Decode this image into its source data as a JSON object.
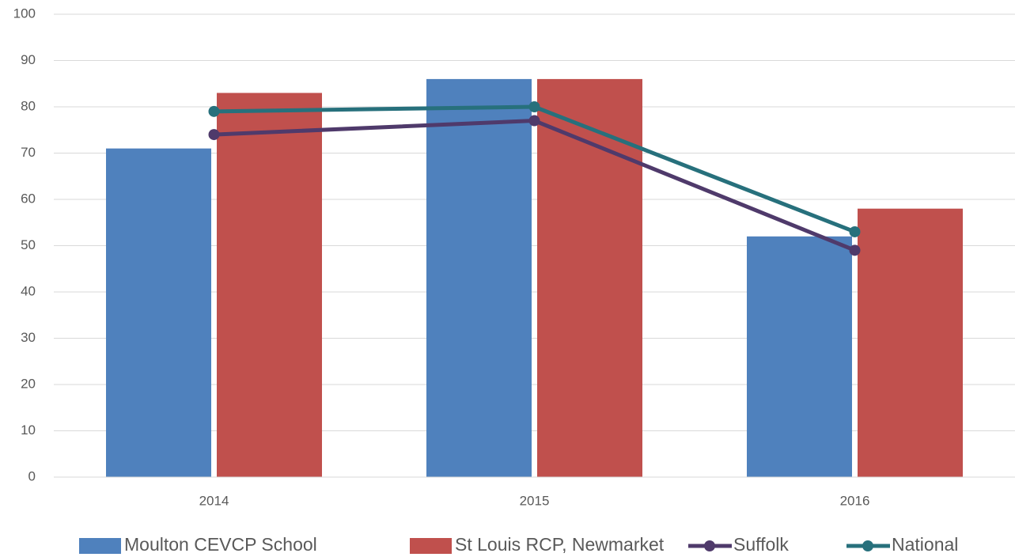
{
  "chart_data": {
    "type": "bar",
    "categories": [
      "2014",
      "2015",
      "2016"
    ],
    "series": [
      {
        "name": "Moulton CEVCP School",
        "type": "bar",
        "color": "#4f81bd",
        "values": [
          71,
          86,
          52
        ]
      },
      {
        "name": "St Louis RCP, Newmarket",
        "type": "bar",
        "color": "#c0504d",
        "values": [
          83,
          86,
          58
        ]
      },
      {
        "name": "Suffolk",
        "type": "line",
        "color": "#4f3a6b",
        "values": [
          74,
          77,
          49
        ]
      },
      {
        "name": "National",
        "type": "line",
        "color": "#27707c",
        "values": [
          79,
          80,
          53
        ]
      }
    ],
    "ylim": [
      0,
      100
    ],
    "yticks": [
      0,
      10,
      20,
      30,
      40,
      50,
      60,
      70,
      80,
      90,
      100
    ],
    "grid": true,
    "legend": "bottom"
  }
}
